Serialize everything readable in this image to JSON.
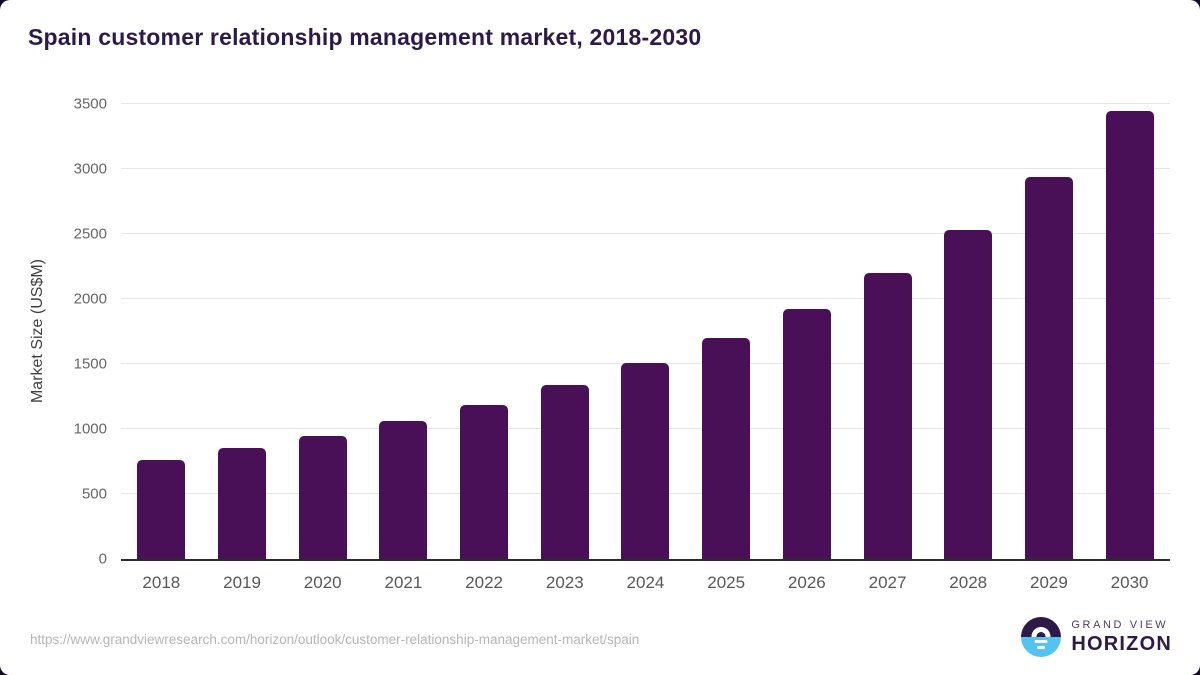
{
  "title": "Spain customer relationship management market, 2018-2030",
  "footer": {
    "source_url": "https://www.grandviewresearch.com/horizon/outlook/customer-relationship-management-market/spain"
  },
  "branding": {
    "name_top": "GRAND VIEW",
    "name_bottom": "HORIZON"
  },
  "colors": {
    "bar": "#491058",
    "title_text": "#2E1A47",
    "gridline": "#e6e6e6",
    "axis_line": "#2b2b2b",
    "tick_text": "#666666",
    "year_text": "#575757",
    "url_text": "#b5b5b5",
    "logo_blue": "#55C3F0",
    "logo_purple": "#2E1A47"
  },
  "chart_data": {
    "type": "bar",
    "title": "Spain customer relationship management market, 2018-2030",
    "categories": [
      "2018",
      "2019",
      "2020",
      "2021",
      "2022",
      "2023",
      "2024",
      "2025",
      "2026",
      "2027",
      "2028",
      "2029",
      "2030"
    ],
    "values": [
      760,
      855,
      950,
      1060,
      1185,
      1335,
      1505,
      1700,
      1920,
      2200,
      2530,
      2940,
      3450
    ],
    "xlabel": "",
    "ylabel": "Market Size (US$M)",
    "ylim": [
      0,
      3500
    ],
    "y_ticks": [
      0,
      500,
      1000,
      1500,
      2000,
      2500,
      3000,
      3500
    ],
    "grid": "horizontal",
    "legend": "none",
    "bar_color": "#491058"
  }
}
